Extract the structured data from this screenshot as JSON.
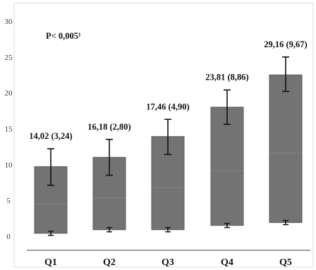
{
  "chart_data": {
    "type": "bar",
    "categories": [
      "Q1",
      "Q2",
      "Q3",
      "Q4",
      "Q5"
    ],
    "values": [
      9.7,
      11.0,
      13.9,
      18.0,
      22.5
    ],
    "bar_base": [
      0.4,
      0.9,
      0.9,
      1.5,
      1.9
    ],
    "error_upper": [
      12.2,
      13.5,
      16.3,
      20.4,
      25.0
    ],
    "error_lower": [
      7.1,
      8.5,
      11.4,
      15.6,
      20.2
    ],
    "base_whisker": [
      0.4,
      0.9,
      0.9,
      1.5,
      1.9
    ],
    "data_labels": [
      "14,02 (3,24)",
      "16,18 (2,80)",
      "17,46 (4,90)",
      "23,81 (8,86)",
      "29,16 (9,67)"
    ],
    "annotation": "P< 0,005¹",
    "yticks": [
      "0",
      "5",
      "10",
      "15",
      "20",
      "25",
      "30"
    ],
    "ylim": [
      -2,
      31
    ],
    "grid": false,
    "colors": {
      "bar": "#737373",
      "bar_stroke": "#5a5a5a",
      "whisker": "#111111",
      "axis": "#666666",
      "frame": "#dddddd"
    }
  }
}
